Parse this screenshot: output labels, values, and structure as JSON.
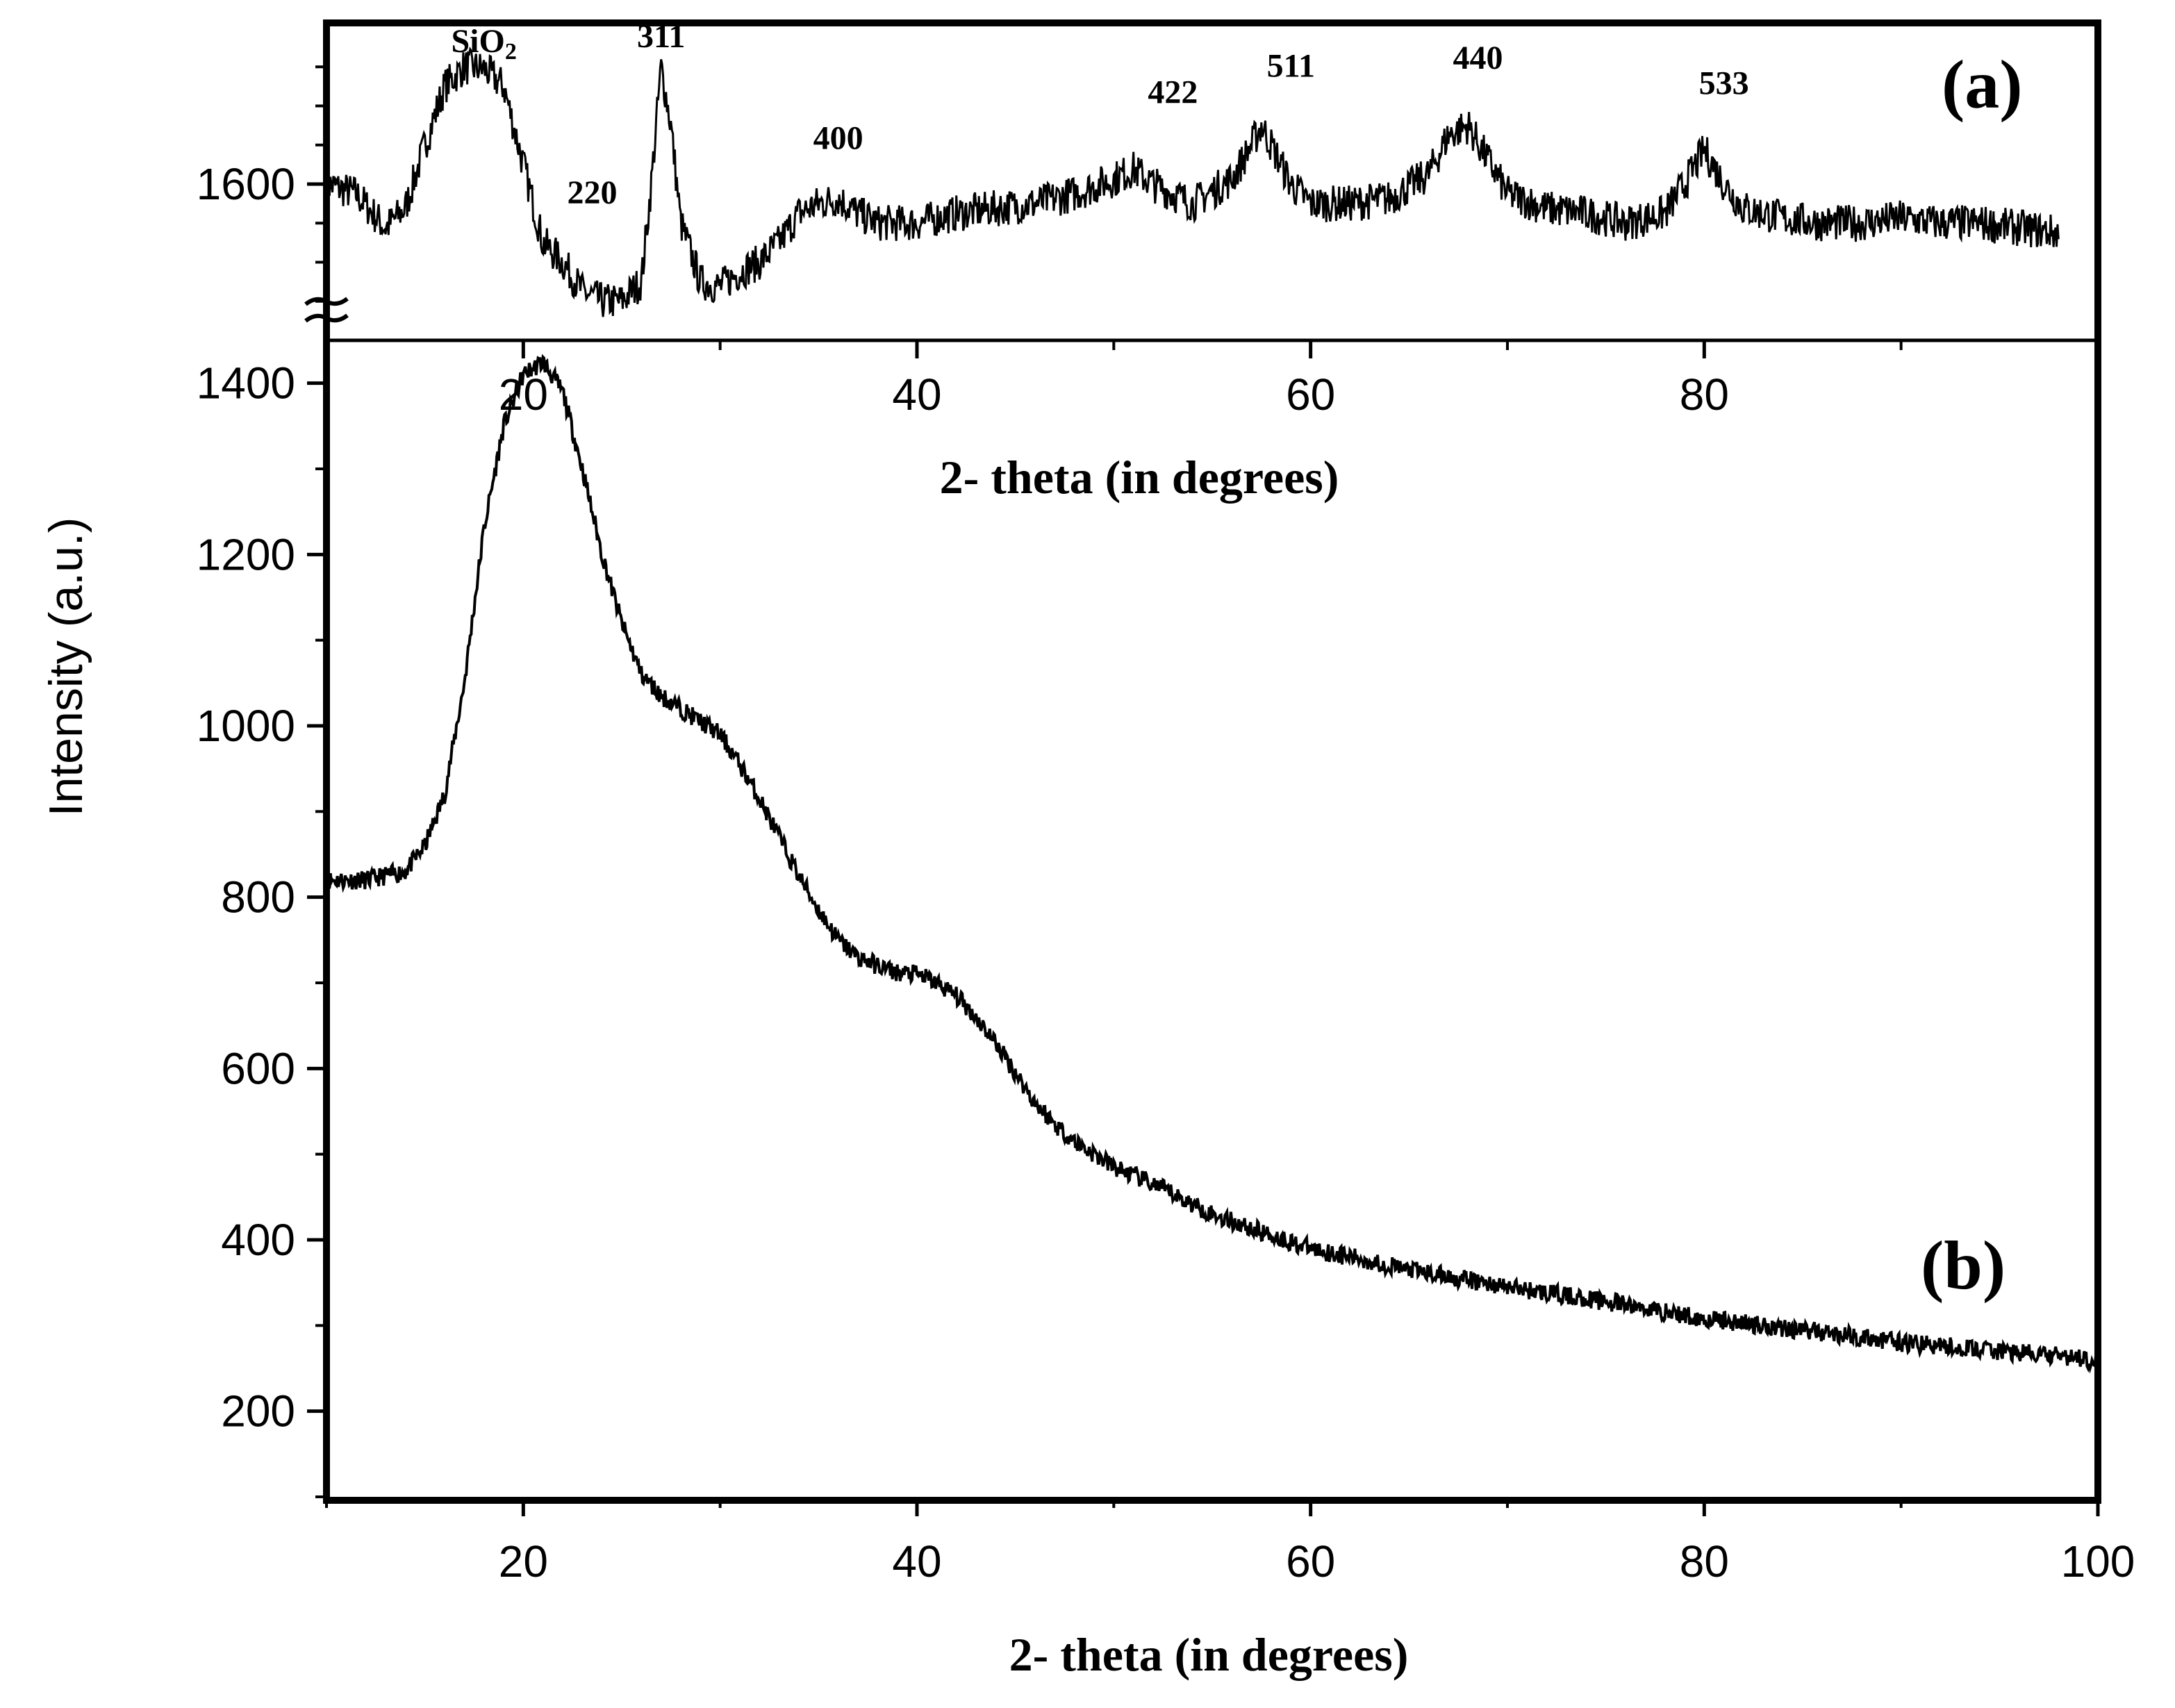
{
  "chart_data": [
    {
      "type": "line",
      "panel_label": "(a)",
      "xlabel": "2- theta (in degrees)",
      "x_ticks": [
        "20",
        "40",
        "60",
        "80"
      ],
      "y_ticks": [
        "1600"
      ],
      "xlim": [
        10,
        100
      ],
      "ylim": [
        1440,
        1760
      ],
      "axis_break": true,
      "peak_labels": [
        {
          "text": "SiO",
          "sub": "2",
          "x": 18,
          "y": 1735
        },
        {
          "text": "311",
          "x": 27,
          "y": 1740
        },
        {
          "text": "220",
          "x": 23.5,
          "y": 1580
        },
        {
          "text": "400",
          "x": 36,
          "y": 1636
        },
        {
          "text": "422",
          "x": 53,
          "y": 1683
        },
        {
          "text": "511",
          "x": 59,
          "y": 1710
        },
        {
          "text": "440",
          "x": 68.5,
          "y": 1718
        },
        {
          "text": "533",
          "x": 81,
          "y": 1692
        }
      ],
      "series": [
        {
          "name": "(a)",
          "x": [
            10,
            11.5,
            13,
            14,
            15,
            16,
            17,
            18,
            19,
            20,
            21,
            22,
            23,
            24,
            25,
            26,
            26.5,
            27,
            27.5,
            28,
            29,
            30,
            31,
            32,
            33,
            34,
            35,
            36,
            37,
            38,
            40,
            42,
            44,
            46,
            48,
            50,
            51,
            52,
            54,
            56,
            57,
            57.5,
            58,
            59,
            60,
            62,
            64,
            66,
            67,
            68,
            69,
            70,
            72,
            74,
            76,
            78,
            79,
            80,
            81,
            82,
            84,
            86,
            88,
            90,
            92,
            94,
            96,
            98
          ],
          "y": [
            1600,
            1590,
            1555,
            1575,
            1640,
            1700,
            1720,
            1718,
            1700,
            1620,
            1540,
            1520,
            1490,
            1480,
            1480,
            1500,
            1600,
            1720,
            1660,
            1560,
            1500,
            1495,
            1510,
            1520,
            1540,
            1570,
            1580,
            1585,
            1570,
            1560,
            1560,
            1570,
            1575,
            1580,
            1590,
            1605,
            1615,
            1600,
            1580,
            1605,
            1640,
            1660,
            1640,
            1600,
            1580,
            1580,
            1585,
            1610,
            1650,
            1660,
            1625,
            1590,
            1575,
            1570,
            1560,
            1570,
            1600,
            1635,
            1600,
            1575,
            1565,
            1560,
            1560,
            1565,
            1560,
            1560,
            1555,
            1550
          ]
        }
      ]
    },
    {
      "type": "line",
      "panel_label": "(b)",
      "xlabel": "2- theta (in degrees)",
      "ylabel": "Intensity (a.u.)",
      "x_ticks": [
        "20",
        "40",
        "60",
        "80",
        "100"
      ],
      "y_ticks": [
        "200",
        "400",
        "600",
        "800",
        "1000",
        "1200",
        "1400"
      ],
      "xlim": [
        10,
        100
      ],
      "ylim": [
        100,
        1450
      ],
      "series": [
        {
          "name": "(b)",
          "x": [
            10,
            12,
            14,
            15,
            16,
            17,
            18,
            19,
            20,
            21,
            22,
            23,
            24,
            25,
            26,
            27,
            28,
            29,
            30,
            31,
            32,
            33,
            34,
            35,
            36,
            37,
            38,
            39,
            40,
            41,
            42,
            43,
            44,
            45,
            46,
            47,
            48,
            50,
            52,
            55,
            58,
            60,
            65,
            70,
            75,
            80,
            85,
            90,
            95,
            100
          ],
          "y": [
            820,
            820,
            830,
            860,
            920,
            1050,
            1230,
            1350,
            1410,
            1425,
            1390,
            1300,
            1200,
            1120,
            1060,
            1035,
            1020,
            1005,
            990,
            955,
            915,
            870,
            825,
            785,
            750,
            730,
            720,
            712,
            710,
            700,
            685,
            660,
            630,
            595,
            560,
            535,
            515,
            485,
            465,
            430,
            405,
            390,
            365,
            345,
            328,
            308,
            295,
            280,
            270,
            260
          ]
        }
      ]
    }
  ]
}
